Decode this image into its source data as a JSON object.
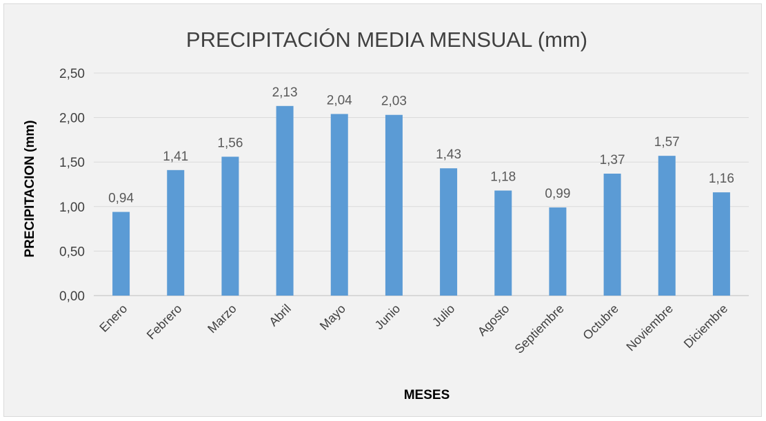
{
  "chart_data": {
    "type": "bar",
    "title": "PRECIPITACIÓN MEDIA MENSUAL (mm)",
    "xlabel": "MESES",
    "ylabel": "PRECIPITACION (mm)",
    "categories": [
      "Enero",
      "Febrero",
      "Marzo",
      "Abril",
      "Mayo",
      "Junio",
      "Julio",
      "Agosto",
      "Septiembre",
      "Octubre",
      "Noviembre",
      "Diciembre"
    ],
    "values": [
      0.94,
      1.41,
      1.56,
      2.13,
      2.04,
      2.03,
      1.43,
      1.18,
      0.99,
      1.37,
      1.57,
      1.16
    ],
    "data_labels": [
      "0,94",
      "1,41",
      "1,56",
      "2,13",
      "2,04",
      "2,03",
      "1,43",
      "1,18",
      "0,99",
      "1,37",
      "1,57",
      "1,16"
    ],
    "y_ticks": [
      0,
      0.5,
      1,
      1.5,
      2,
      2.5
    ],
    "y_tick_labels": [
      "0,00",
      "0,50",
      "1,00",
      "1,50",
      "2,00",
      "2,50"
    ],
    "ylim": [
      0,
      2.5
    ],
    "grid": true,
    "legend": "none",
    "colors": {
      "bar": "#5b9bd5",
      "background": "#f2f2f2"
    }
  }
}
